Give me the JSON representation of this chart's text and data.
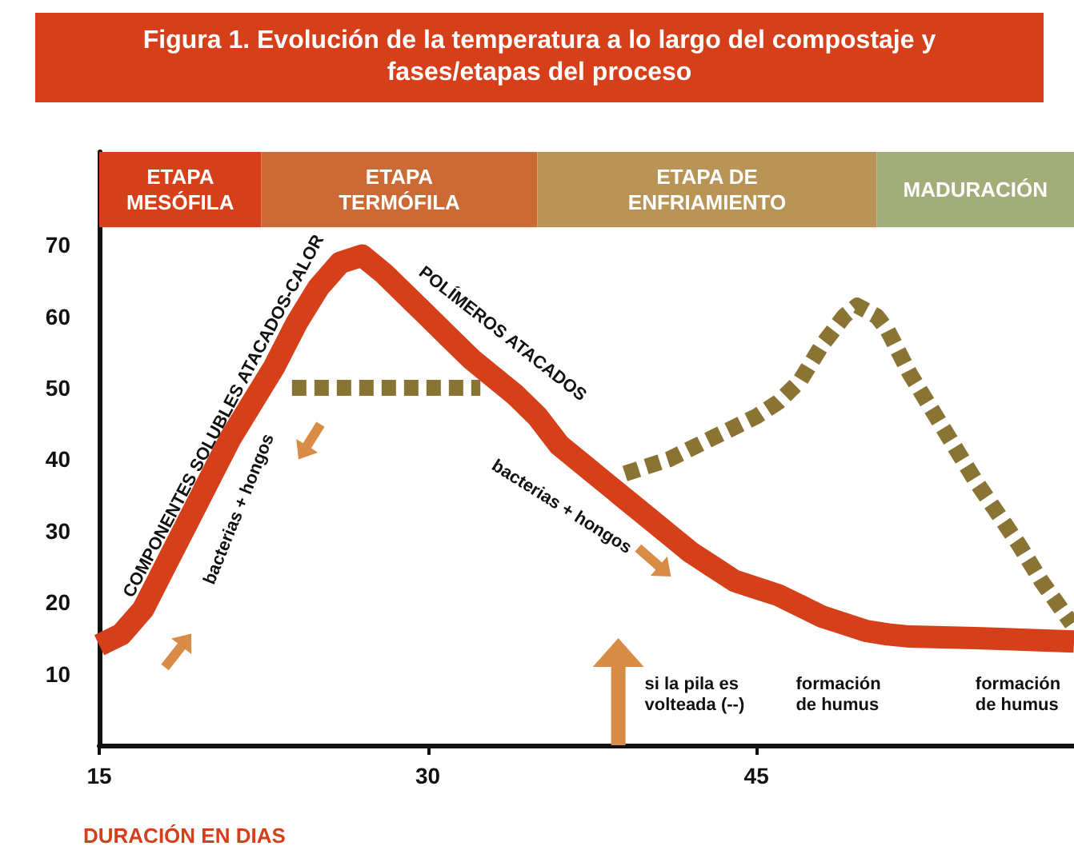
{
  "chart_data": {
    "type": "line",
    "title": "Figura 1. Evolución de la temperatura a lo largo del compostaje y fases/etapas del proceso",
    "xlabel": "DURACIÓN EN DIAS",
    "xlim": [
      15,
      59.5
    ],
    "xticks": [
      15,
      30,
      45
    ],
    "ylim": [
      0,
      83
    ],
    "yticks": [
      10,
      20,
      30,
      40,
      50,
      60,
      70
    ],
    "grid": false,
    "marker": "none",
    "series": [
      {
        "color": "#d5401a",
        "line_style": "solid",
        "x": [
          15,
          16,
          17,
          18,
          19,
          20,
          21,
          22,
          23,
          24,
          25,
          26,
          27,
          28,
          29,
          30,
          31,
          32,
          33,
          34,
          35,
          36,
          37,
          38,
          39,
          40,
          41,
          42,
          43,
          44,
          45,
          46,
          47,
          48,
          49,
          50,
          51,
          52,
          55,
          59.5
        ],
        "values": [
          14,
          15.5,
          19,
          25,
          31,
          37,
          43,
          48,
          53,
          59,
          64,
          67.5,
          68.5,
          66,
          63,
          60,
          57,
          54,
          51.5,
          49,
          46,
          42,
          39.5,
          37,
          34.5,
          32,
          29.5,
          27,
          25,
          23,
          22,
          21,
          19.5,
          18,
          17,
          16,
          15.5,
          15.2,
          15,
          14.5
        ]
      },
      {
        "color": "#8a7433",
        "line_style": "dashed",
        "x": [
          39,
          41,
          43,
          45,
          46,
          47,
          48,
          49,
          49.6,
          50.5,
          51,
          52,
          53,
          54,
          55,
          56,
          57,
          58,
          59.4
        ],
        "values": [
          38,
          40,
          43,
          46,
          48,
          51,
          56,
          60,
          61.5,
          60,
          58,
          52,
          47,
          42,
          37,
          32.5,
          28,
          23,
          17
        ]
      },
      {
        "color": "#8a7433",
        "line_style": "dashed",
        "x": [
          23.8,
          32.4
        ],
        "values": [
          50,
          50
        ]
      }
    ],
    "bands": [
      {
        "axis": "x",
        "from": 15,
        "to": 22.4,
        "label": "ETAPA\nMESÓFILA",
        "color": "#d5401a"
      },
      {
        "axis": "x",
        "from": 22.4,
        "to": 35,
        "label": "ETAPA\nTERMÓFILA",
        "color": "#cc6a35"
      },
      {
        "axis": "x",
        "from": 35,
        "to": 50.5,
        "label": "ETAPA DE\nENFRIAMIENTO",
        "color": "#b99457"
      },
      {
        "axis": "x",
        "from": 50.5,
        "to": 59.5,
        "label": "MADURACIÓN",
        "color": "#a3ad79"
      }
    ],
    "annotations": [
      "COMPONENTES SOLUBLES ATACADOS-CALOR",
      "POLÍMEROS ATACADOS",
      "bacterias + hongos",
      "bacterias + hongos",
      "si la pila es\nvolteada (--)",
      "formación\nde humus",
      "formación\nde humus"
    ]
  }
}
